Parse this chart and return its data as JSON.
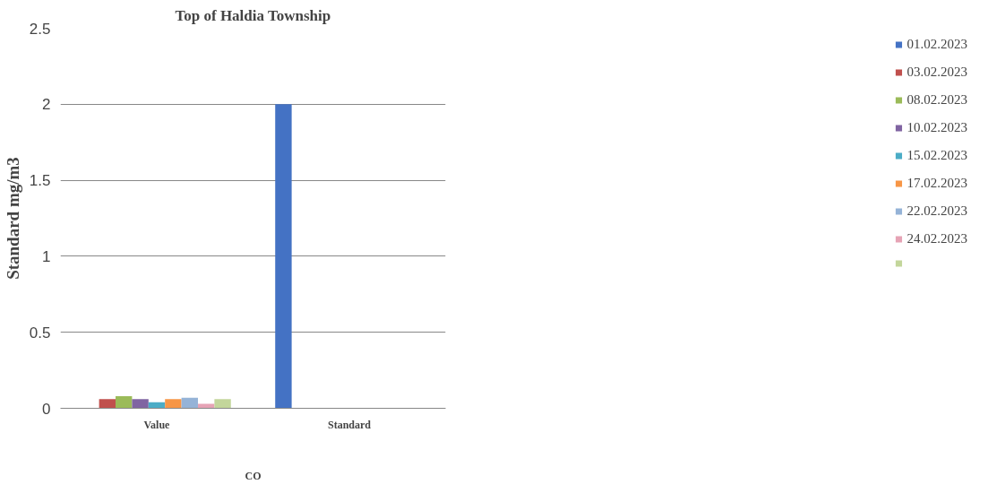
{
  "chart_data": {
    "type": "bar",
    "title": "Top of Haldia Township",
    "xlabel": "CO",
    "ylabel": "Standard mg/m3",
    "categories": [
      "Value",
      "Standard"
    ],
    "series": [
      {
        "name": "01.02.2023",
        "color": "#4472c4",
        "values": [
          null,
          2
        ]
      },
      {
        "name": "03.02.2023",
        "color": "#c0504d",
        "values": [
          0.06,
          null
        ]
      },
      {
        "name": "08.02.2023",
        "color": "#9bbb59",
        "values": [
          0.08,
          null
        ]
      },
      {
        "name": "10.02.2023",
        "color": "#8064a2",
        "values": [
          0.06,
          null
        ]
      },
      {
        "name": "15.02.2023",
        "color": "#4bacc6",
        "values": [
          0.04,
          null
        ]
      },
      {
        "name": "17.02.2023",
        "color": "#f79646",
        "values": [
          0.06,
          null
        ]
      },
      {
        "name": "22.02.2023",
        "color": "#95b3d7",
        "values": [
          0.07,
          null
        ]
      },
      {
        "name": "24.02.2023",
        "color": "#e6a3b5",
        "values": [
          0.03,
          null
        ]
      },
      {
        "color": "#c3d69b",
        "values": [
          0.06,
          null
        ]
      }
    ],
    "ylim": [
      0,
      2.5
    ],
    "yticks": [
      0,
      0.5,
      1,
      1.5,
      2,
      2.5
    ],
    "grid": "y",
    "legend": "right"
  }
}
